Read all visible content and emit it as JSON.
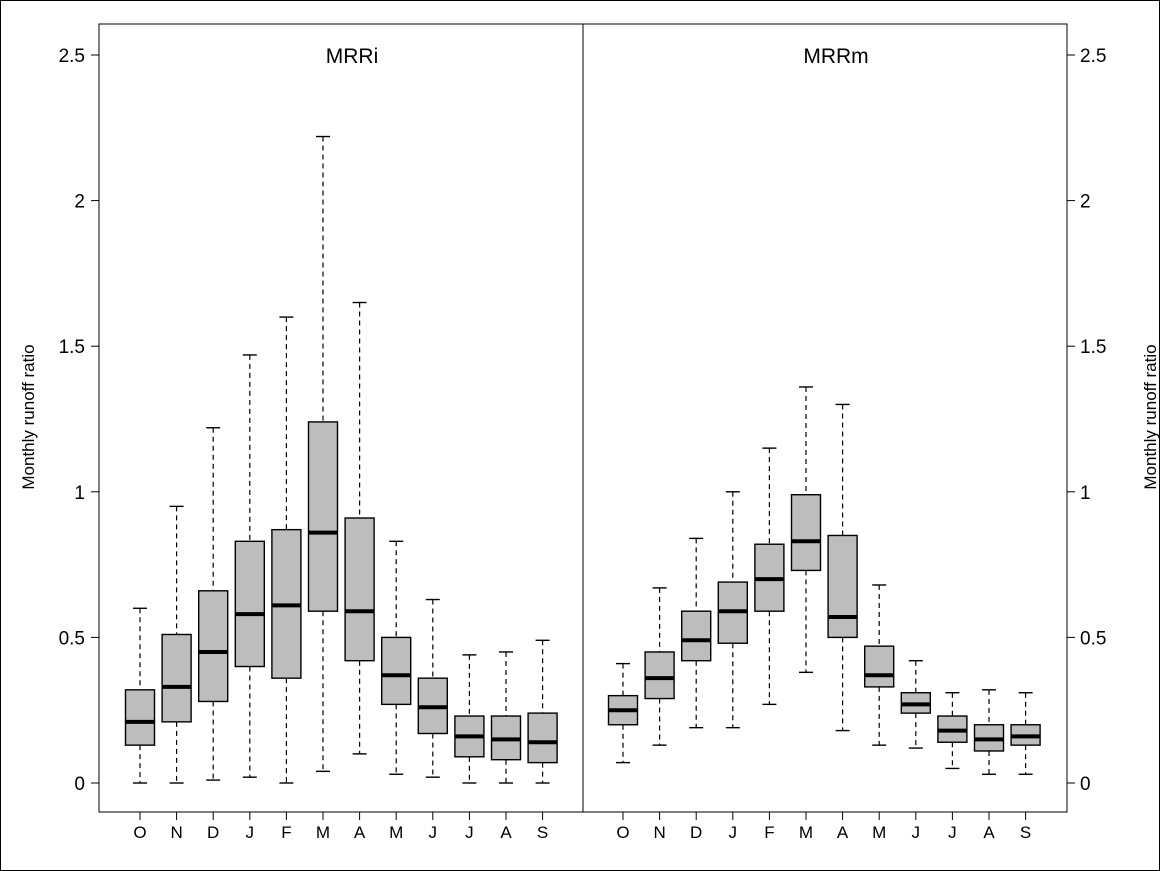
{
  "chart_data": {
    "type": "boxplot",
    "ylabel": "Monthly runoff ratio",
    "ylim": [
      -0.1,
      2.6
    ],
    "yticks": [
      0,
      0.5,
      1,
      1.5,
      2,
      2.5
    ],
    "ytick_labels": [
      "0",
      "0.5",
      "1",
      "1.5",
      "2",
      "2.5"
    ],
    "categories": [
      "O",
      "N",
      "D",
      "J",
      "F",
      "M",
      "A",
      "M",
      "J",
      "J",
      "A",
      "S"
    ],
    "panels": [
      {
        "title": "MRRi",
        "stats": [
          {
            "min": 0.0,
            "q1": 0.13,
            "median": 0.21,
            "q3": 0.32,
            "max": 0.6
          },
          {
            "min": 0.0,
            "q1": 0.21,
            "median": 0.33,
            "q3": 0.51,
            "max": 0.95
          },
          {
            "min": 0.01,
            "q1": 0.28,
            "median": 0.45,
            "q3": 0.66,
            "max": 1.22
          },
          {
            "min": 0.02,
            "q1": 0.4,
            "median": 0.58,
            "q3": 0.83,
            "max": 1.47
          },
          {
            "min": 0.0,
            "q1": 0.36,
            "median": 0.61,
            "q3": 0.87,
            "max": 1.6
          },
          {
            "min": 0.04,
            "q1": 0.59,
            "median": 0.86,
            "q3": 1.24,
            "max": 2.22
          },
          {
            "min": 0.1,
            "q1": 0.42,
            "median": 0.59,
            "q3": 0.91,
            "max": 1.65
          },
          {
            "min": 0.03,
            "q1": 0.27,
            "median": 0.37,
            "q3": 0.5,
            "max": 0.83
          },
          {
            "min": 0.02,
            "q1": 0.17,
            "median": 0.26,
            "q3": 0.36,
            "max": 0.63
          },
          {
            "min": 0.0,
            "q1": 0.09,
            "median": 0.16,
            "q3": 0.23,
            "max": 0.44
          },
          {
            "min": 0.0,
            "q1": 0.08,
            "median": 0.15,
            "q3": 0.23,
            "max": 0.45
          },
          {
            "min": 0.0,
            "q1": 0.07,
            "median": 0.14,
            "q3": 0.24,
            "max": 0.49
          }
        ]
      },
      {
        "title": "MRRm",
        "stats": [
          {
            "min": 0.07,
            "q1": 0.2,
            "median": 0.25,
            "q3": 0.3,
            "max": 0.41
          },
          {
            "min": 0.13,
            "q1": 0.29,
            "median": 0.36,
            "q3": 0.45,
            "max": 0.67
          },
          {
            "min": 0.19,
            "q1": 0.42,
            "median": 0.49,
            "q3": 0.59,
            "max": 0.84
          },
          {
            "min": 0.19,
            "q1": 0.48,
            "median": 0.59,
            "q3": 0.69,
            "max": 1.0
          },
          {
            "min": 0.27,
            "q1": 0.59,
            "median": 0.7,
            "q3": 0.82,
            "max": 1.15
          },
          {
            "min": 0.38,
            "q1": 0.73,
            "median": 0.83,
            "q3": 0.99,
            "max": 1.36
          },
          {
            "min": 0.18,
            "q1": 0.5,
            "median": 0.57,
            "q3": 0.85,
            "max": 1.3
          },
          {
            "min": 0.13,
            "q1": 0.33,
            "median": 0.37,
            "q3": 0.47,
            "max": 0.68
          },
          {
            "min": 0.12,
            "q1": 0.24,
            "median": 0.27,
            "q3": 0.31,
            "max": 0.42
          },
          {
            "min": 0.05,
            "q1": 0.14,
            "median": 0.18,
            "q3": 0.23,
            "max": 0.31
          },
          {
            "min": 0.03,
            "q1": 0.11,
            "median": 0.15,
            "q3": 0.2,
            "max": 0.32
          },
          {
            "min": 0.03,
            "q1": 0.13,
            "median": 0.16,
            "q3": 0.2,
            "max": 0.31
          }
        ]
      }
    ],
    "colors": {
      "box_fill": "#bdbdbd",
      "stroke": "#000000"
    },
    "grid": false,
    "legend": "none"
  }
}
